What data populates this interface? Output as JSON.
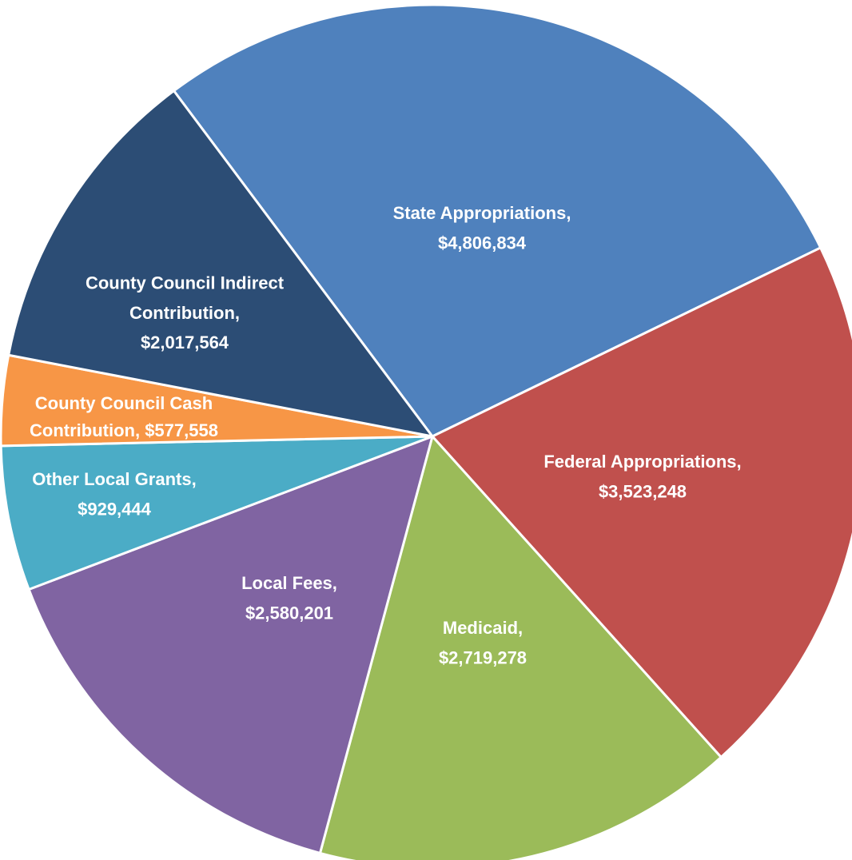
{
  "chart_data": {
    "type": "pie",
    "values": [
      4806834,
      3523248,
      2719278,
      2580201,
      929444,
      577558,
      2017564
    ],
    "value_labels": [
      [
        "State Appropriations,",
        "$4,806,834"
      ],
      [
        "Federal Appropriations,",
        "$3,523,248"
      ],
      [
        "Medicaid,",
        "$2,719,278"
      ],
      [
        "Local Fees,",
        "$2,580,201"
      ],
      [
        "Other Local Grants,",
        "$929,444"
      ],
      [
        "County Council Cash",
        "Contribution, $577,558"
      ],
      [
        "County Council Indirect",
        "Contribution,",
        "$2,017,564"
      ]
    ],
    "colors": [
      "#4f81bd",
      "#c0504d",
      "#9bbb59",
      "#8064a2",
      "#4bacc6",
      "#f79646",
      "#2c4d75"
    ]
  }
}
